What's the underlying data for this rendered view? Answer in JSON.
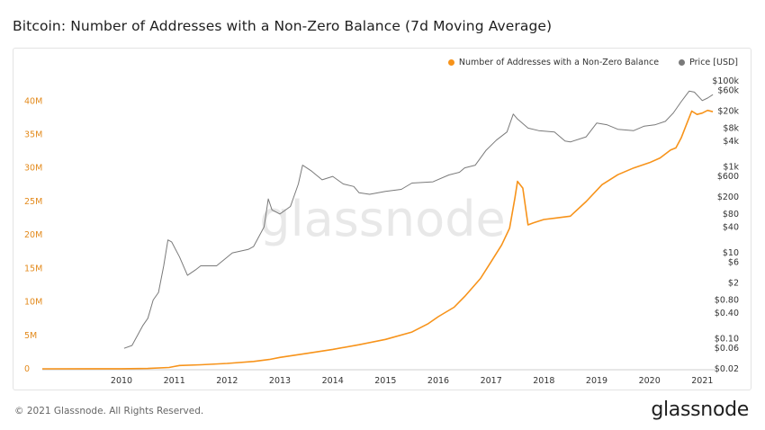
{
  "page": {
    "title": "Bitcoin: Number of Addresses with a Non-Zero Balance (7d Moving Average)",
    "footer": "© 2021 Glassnode. All Rights Reserved.",
    "logo": "glassnode",
    "watermark": "glassnode"
  },
  "colors": {
    "addresses": "#f7931a",
    "price": "#7a7a7a",
    "left_axis_text": "#e38a1c"
  },
  "chart_data": {
    "type": "line",
    "title": "Bitcoin: Number of Addresses with a Non-Zero Balance (7d Moving Average)",
    "grid": false,
    "legend_position": "top-right",
    "legend": [
      "Number of Addresses with a Non-Zero Balance",
      "Price [USD]"
    ],
    "x_ticks": [
      "2010",
      "2011",
      "2012",
      "2013",
      "2014",
      "2015",
      "2016",
      "2017",
      "2018",
      "2019",
      "2020",
      "2021"
    ],
    "xlim": [
      2009.0,
      2021.75
    ],
    "y_left": {
      "scale": "linear",
      "lim": [
        0,
        43000000
      ],
      "ticks": [
        0,
        5000000,
        10000000,
        15000000,
        20000000,
        25000000,
        30000000,
        35000000,
        40000000
      ],
      "tick_labels": [
        "0",
        "5M",
        "10M",
        "15M",
        "20M",
        "25M",
        "30M",
        "35M",
        "40M"
      ]
    },
    "y_right": {
      "scale": "log",
      "lim": [
        0.02,
        100000
      ],
      "tick_labels": [
        "$0.02",
        "$0.06",
        "$0.10",
        "$0.40",
        "$0.80",
        "$2",
        "$6",
        "$10",
        "$40",
        "$80",
        "$200",
        "$600",
        "$1k",
        "$4k",
        "$8k",
        "$20k",
        "$60k",
        "$100k"
      ],
      "ticks": [
        0.02,
        0.06,
        0.1,
        0.4,
        0.8,
        2,
        6,
        10,
        40,
        80,
        200,
        600,
        1000,
        4000,
        8000,
        20000,
        60000,
        100000
      ]
    },
    "series": [
      {
        "name": "Number of Addresses with a Non-Zero Balance",
        "axis": "left",
        "x": [
          2009.0,
          2010.0,
          2010.5,
          2011.0,
          2011.4,
          2011.5,
          2011.6,
          2012.0,
          2012.5,
          2013.0,
          2013.3,
          2013.5,
          2014.0,
          2014.5,
          2015.0,
          2015.5,
          2016.0,
          2016.3,
          2016.5,
          2016.8,
          2017.0,
          2017.3,
          2017.5,
          2017.7,
          2017.85,
          2017.95,
          2018.0,
          2018.1,
          2018.2,
          2018.3,
          2018.5,
          2018.7,
          2019.0,
          2019.3,
          2019.6,
          2019.9,
          2020.2,
          2020.5,
          2020.7,
          2020.9,
          2021.0,
          2021.1,
          2021.2,
          2021.3,
          2021.4,
          2021.5,
          2021.6,
          2021.7
        ],
        "values": [
          0,
          10000,
          20000,
          60000,
          200000,
          350000,
          500000,
          600000,
          800000,
          1100000,
          1400000,
          1700000,
          2300000,
          2900000,
          3600000,
          4400000,
          5500000,
          6700000,
          7800000,
          9200000,
          10800000,
          13500000,
          16000000,
          18500000,
          21000000,
          25500000,
          28000000,
          27000000,
          21500000,
          21800000,
          22300000,
          22500000,
          22800000,
          25000000,
          27500000,
          29000000,
          30000000,
          30800000,
          31500000,
          32700000,
          33000000,
          34500000,
          36500000,
          38500000,
          38000000,
          38200000,
          38600000,
          38400000
        ]
      },
      {
        "name": "Price [USD]",
        "axis": "right",
        "x": [
          2010.55,
          2010.7,
          2010.9,
          2011.0,
          2011.1,
          2011.2,
          2011.3,
          2011.38,
          2011.45,
          2011.6,
          2011.75,
          2011.9,
          2012.0,
          2012.3,
          2012.6,
          2012.9,
          2013.0,
          2013.2,
          2013.28,
          2013.35,
          2013.5,
          2013.7,
          2013.85,
          2013.93,
          2014.1,
          2014.3,
          2014.5,
          2014.7,
          2014.9,
          2015.0,
          2015.2,
          2015.5,
          2015.8,
          2016.0,
          2016.4,
          2016.7,
          2016.9,
          2017.0,
          2017.2,
          2017.4,
          2017.6,
          2017.8,
          2017.92,
          2018.0,
          2018.2,
          2018.4,
          2018.7,
          2018.9,
          2019.0,
          2019.3,
          2019.5,
          2019.7,
          2019.9,
          2020.2,
          2020.4,
          2020.6,
          2020.8,
          2020.95,
          2021.1,
          2021.25,
          2021.35,
          2021.5,
          2021.6,
          2021.7
        ],
        "values": [
          0.06,
          0.07,
          0.2,
          0.3,
          0.8,
          1.2,
          5,
          20,
          18,
          8,
          3,
          4,
          5,
          5,
          10,
          12,
          14,
          40,
          180,
          100,
          80,
          120,
          400,
          1100,
          800,
          500,
          600,
          400,
          350,
          250,
          230,
          270,
          300,
          420,
          450,
          650,
          750,
          950,
          1100,
          2400,
          4200,
          6500,
          17000,
          13000,
          8000,
          7000,
          6500,
          4000,
          3800,
          5000,
          10500,
          9500,
          7500,
          7000,
          8900,
          9500,
          11500,
          18000,
          33000,
          58000,
          55000,
          35000,
          40000,
          48000
        ]
      }
    ]
  }
}
